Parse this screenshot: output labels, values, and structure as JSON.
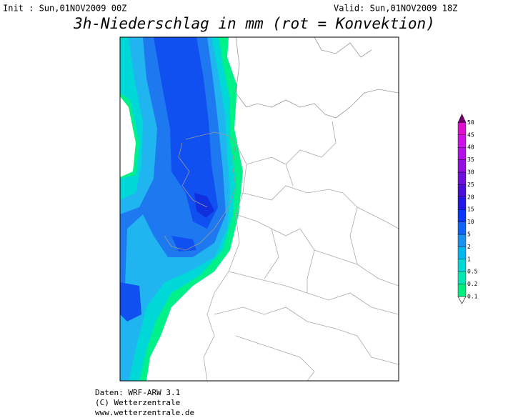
{
  "header": {
    "init": "Init : Sun,01NOV2009 00Z",
    "valid": "Valid: Sun,01NOV2009 18Z",
    "title": "3h-Niederschlag in mm (rot = Konvektion)"
  },
  "legend": {
    "levels": [
      0.1,
      0.2,
      0.5,
      1,
      2,
      5,
      10,
      15,
      20,
      25,
      30,
      35,
      40,
      45,
      50
    ],
    "colors": [
      "#00ee80",
      "#00e6b4",
      "#00d8d8",
      "#00b8f0",
      "#1a90f0",
      "#1064f8",
      "#0838ff",
      "#2418e8",
      "#4a10d8",
      "#7010dc",
      "#9410e0",
      "#b410e8",
      "#d010e8",
      "#e010d0",
      "#700070"
    ]
  },
  "footer": {
    "lines": [
      "Daten: WRF-ARW 3.1",
      "(C) Wetterzentrale",
      "www.wetterzentrale.de"
    ]
  }
}
